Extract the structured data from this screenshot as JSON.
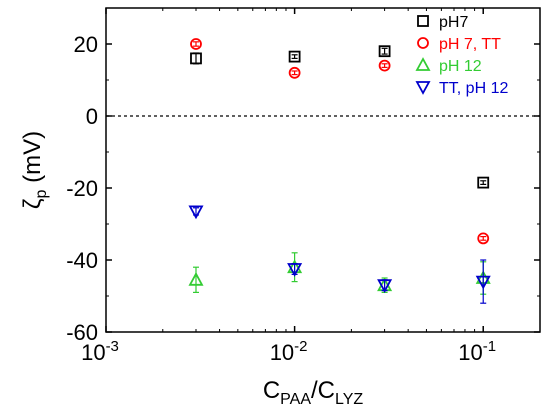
{
  "chart_data": {
    "type": "scatter",
    "x_scale": "log",
    "xlim": [
      0.001,
      0.2
    ],
    "ylim": [
      -60,
      30
    ],
    "x_ticks": [
      {
        "value": 0.001,
        "base": "10",
        "exp": "-3"
      },
      {
        "value": 0.01,
        "base": "10",
        "exp": "-2"
      },
      {
        "value": 0.1,
        "base": "10",
        "exp": "-1"
      }
    ],
    "y_ticks": [
      {
        "value": 20,
        "label": "20"
      },
      {
        "value": 0,
        "label": "0"
      },
      {
        "value": -20,
        "label": "-20"
      },
      {
        "value": -40,
        "label": "-40"
      },
      {
        "value": -60,
        "label": "-60"
      }
    ],
    "xlabel": {
      "main1": "C",
      "sub1": "PAA",
      "sep": "/C",
      "sub2": "LYZ"
    },
    "ylabel": {
      "symbol": "ζ",
      "sub": "p",
      "rest": " (mV)"
    },
    "reference_line": {
      "y": 0,
      "style": "dashed"
    },
    "legend": {
      "position": "top-right"
    },
    "series": [
      {
        "name": "pH7",
        "marker": "square",
        "color": "#000000",
        "points": [
          {
            "x": 0.003,
            "y": 16,
            "err": 1.5
          },
          {
            "x": 0.01,
            "y": 16.5,
            "err": 0.5
          },
          {
            "x": 0.03,
            "y": 18,
            "err": 0.8
          },
          {
            "x": 0.1,
            "y": -18.5,
            "err": 0.5
          }
        ]
      },
      {
        "name": "pH 7, TT",
        "marker": "circle",
        "color": "#ff0000",
        "points": [
          {
            "x": 0.003,
            "y": 20,
            "err": 0.6
          },
          {
            "x": 0.01,
            "y": 12,
            "err": 0.5
          },
          {
            "x": 0.03,
            "y": 14,
            "err": 0.5
          },
          {
            "x": 0.1,
            "y": -34,
            "err": 0.5
          }
        ]
      },
      {
        "name": "pH 12",
        "marker": "triangle-up",
        "color": "#33cc33",
        "points": [
          {
            "x": 0.003,
            "y": -45.5,
            "err": 3.5
          },
          {
            "x": 0.01,
            "y": -42,
            "err": 4
          },
          {
            "x": 0.03,
            "y": -47,
            "err": 2
          },
          {
            "x": 0.1,
            "y": -45,
            "err": 4.5
          }
        ]
      },
      {
        "name": "TT, pH 12",
        "marker": "triangle-down",
        "color": "#0000cc",
        "points": [
          {
            "x": 0.003,
            "y": -26.5,
            "err": 1
          },
          {
            "x": 0.01,
            "y": -42.5,
            "err": 1.5
          },
          {
            "x": 0.03,
            "y": -47,
            "err": 1.5
          },
          {
            "x": 0.1,
            "y": -46,
            "err": 6
          }
        ]
      }
    ]
  }
}
